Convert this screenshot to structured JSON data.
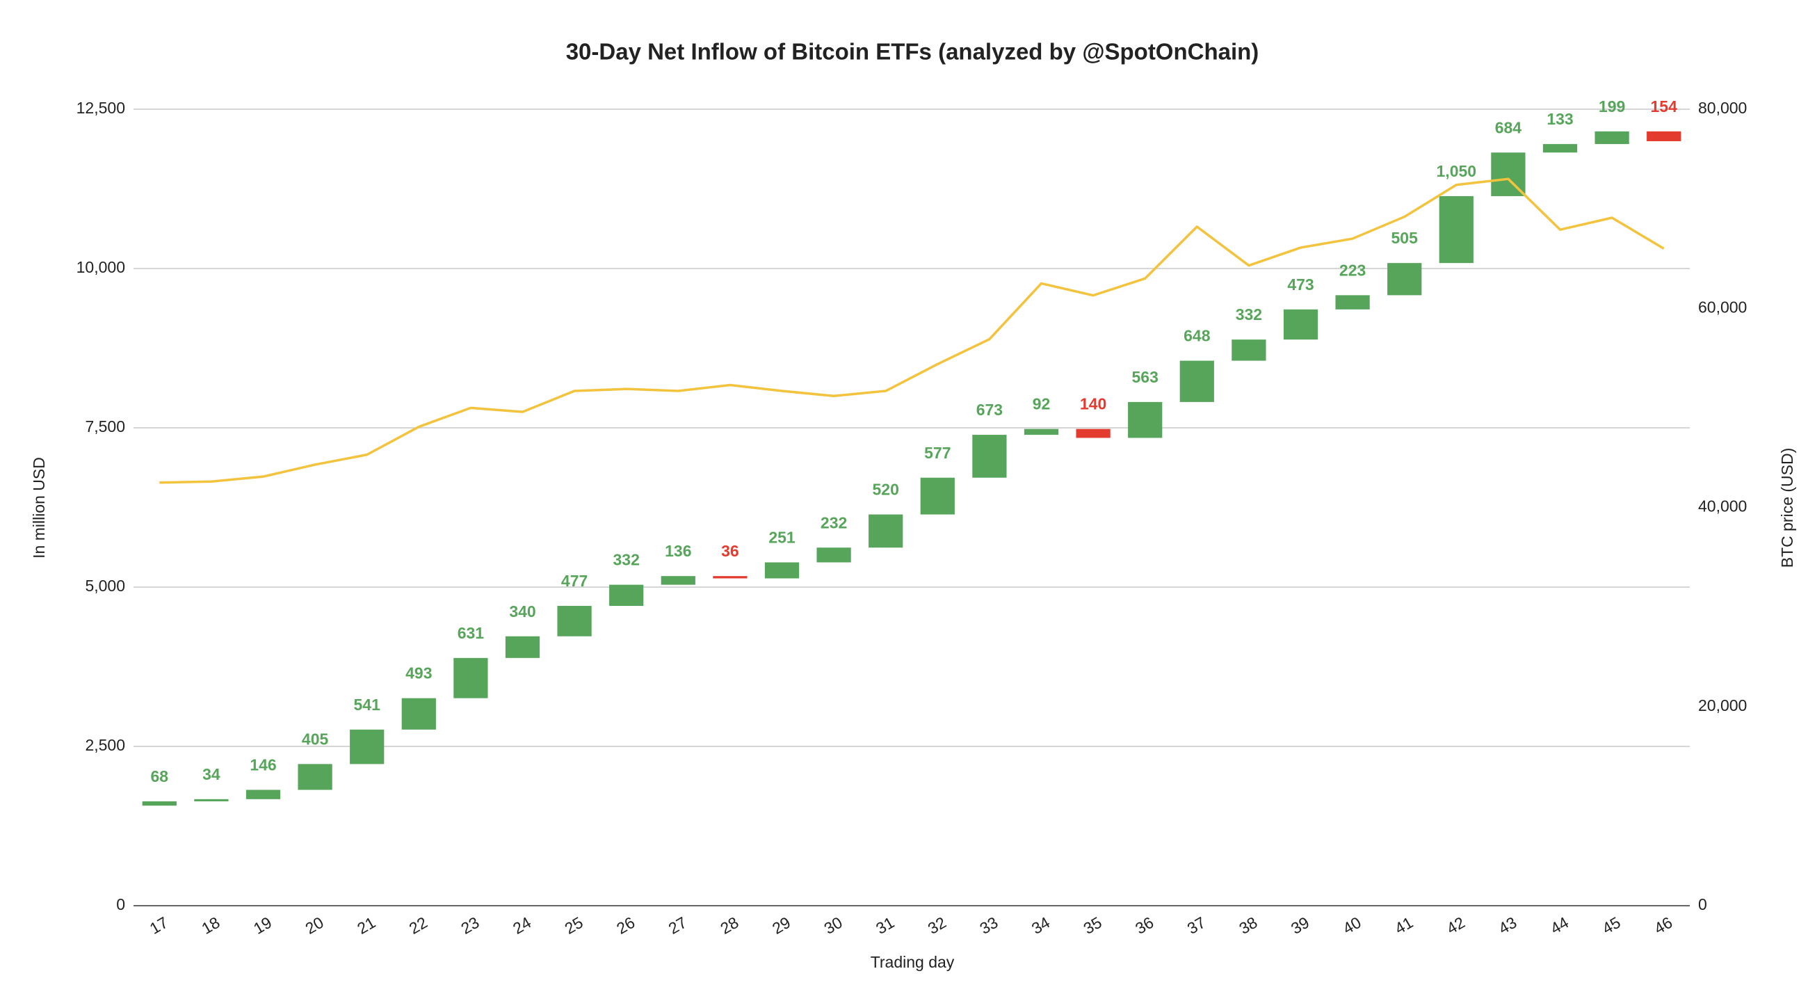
{
  "chart_data": {
    "type": "waterfall",
    "title": "30-Day Net Inflow of Bitcoin ETFs (analyzed by @SpotOnChain)",
    "x_label": "Trading day",
    "y_label": "In million USD",
    "y2_label": "BTC price (USD)",
    "categories": [
      "17",
      "18",
      "19",
      "20",
      "21",
      "22",
      "23",
      "24",
      "25",
      "26",
      "27",
      "28",
      "29",
      "30",
      "31",
      "32",
      "33",
      "34",
      "35",
      "36",
      "37",
      "38",
      "39",
      "40",
      "41",
      "42",
      "43",
      "44",
      "45",
      "46"
    ],
    "base": 1570,
    "values": [
      68,
      34,
      146,
      405,
      541,
      493,
      631,
      340,
      477,
      332,
      136,
      -36,
      251,
      232,
      520,
      577,
      673,
      92,
      -140,
      563,
      648,
      332,
      473,
      223,
      505,
      1050,
      684,
      133,
      199,
      -154
    ],
    "value_labels": [
      "68",
      "34",
      "146",
      "405",
      "541",
      "493",
      "631",
      "340",
      "477",
      "332",
      "136",
      "36",
      "251",
      "232",
      "520",
      "577",
      "673",
      "92",
      "140",
      "563",
      "648",
      "332",
      "473",
      "223",
      "505",
      "1,050",
      "684",
      "133",
      "199",
      "154"
    ],
    "color": "#57a55a",
    "negative_color": "#e33b2e",
    "series": [
      {
        "name": "BTC price (USD)",
        "color": "#f3c33d",
        "axis": "y2",
        "values": [
          42500,
          42600,
          43100,
          44300,
          45300,
          48100,
          50000,
          49600,
          51700,
          51900,
          51700,
          52300,
          51700,
          51200,
          51700,
          54400,
          56900,
          62500,
          61300,
          63000,
          68200,
          64300,
          66100,
          67000,
          69200,
          72400,
          73000,
          67900,
          69100,
          66000
        ]
      }
    ],
    "ylim": [
      0,
      12500
    ],
    "yticks": [
      0,
      {
        "value": 2500,
        "label": "2,500"
      },
      {
        "value": 5000,
        "label": "5,000"
      },
      {
        "value": 7500,
        "label": "7,500"
      },
      {
        "value": 10000,
        "label": "10,000"
      },
      {
        "value": 12500,
        "label": "12,500"
      }
    ],
    "y2lim": [
      0,
      80000
    ],
    "y2ticks": [
      0,
      {
        "value": 20000,
        "label": "20,000"
      },
      {
        "value": 40000,
        "label": "40,000"
      },
      {
        "value": 60000,
        "label": "60,000"
      },
      {
        "value": 80000,
        "label": "80,000"
      }
    ],
    "grid": true
  }
}
